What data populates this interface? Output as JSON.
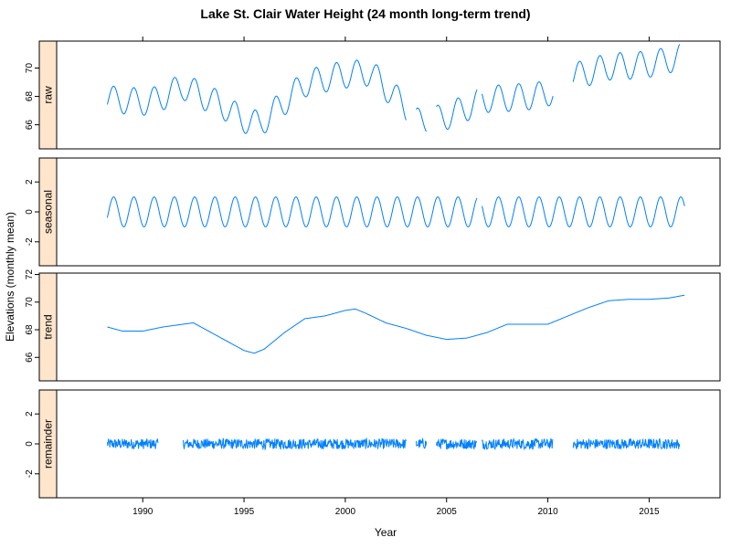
{
  "chart_data": {
    "type": "line",
    "title": "Lake St. Clair Water Height (24 month long-term trend)",
    "xlabel": "Year",
    "ylabel": "Elevations (monthly mean)",
    "xlim": [
      1985.75,
      2018.5
    ],
    "x_ticks": [
      1990,
      1995,
      2000,
      2005,
      2010,
      2015
    ],
    "colors": {
      "main": "#0080ff",
      "highlight": "#ff00ff",
      "strip": "#ffe5cc",
      "axis": "#000000"
    },
    "panels": [
      {
        "strip": "raw",
        "ylim": [
          64.3,
          71.9
        ],
        "y_ticks": [
          66,
          68,
          70
        ],
        "kind": "seasonal_series",
        "amplitude": 0.95,
        "series": [
          {
            "x": [
              1988.25,
              1990.25,
              1990.75,
              1992.0,
              1994.0,
              1994.75,
              1995.75,
              1998.0,
              1999.75,
              2001.25,
              2003.0
            ],
            "y": [
              67.8,
              67.6,
              67.8,
              68.7,
              67.3,
              66.5,
              66.0,
              68.9,
              69.5,
              69.7,
              67.2
            ]
          },
          {
            "x": [
              2003.5,
              2003.75,
              2004.0
            ],
            "y": [
              66.2,
              66.3,
              66.4
            ]
          },
          {
            "x": [
              2004.5,
              2005.0,
              2006.0,
              2006.5
            ],
            "y": [
              66.4,
              66.6,
              67.2,
              67.6
            ]
          },
          {
            "x": [
              2006.75,
              2008.25,
              2009.75,
              2010.25
            ],
            "y": [
              67.8,
              67.9,
              68.1,
              68.4
            ]
          },
          {
            "x": [
              2011.25,
              2013.0,
              2014.5,
              2015.5,
              2016.5
            ],
            "y": [
              69.4,
              70.1,
              70.2,
              70.4,
              70.8
            ]
          }
        ]
      },
      {
        "strip": "seasonal",
        "ylim": [
          -3.6,
          3.6
        ],
        "y_ticks": [
          -2,
          0,
          2
        ],
        "kind": "seasonal_component",
        "amplitude": 1.0,
        "series": [
          {
            "x": [
              1988.25,
              2003.0
            ]
          },
          {
            "x": [
              2003.0,
              2006.5
            ]
          },
          {
            "x": [
              2006.75,
              2016.75
            ]
          }
        ]
      },
      {
        "strip": "trend",
        "ylim": [
          64.3,
          72.1
        ],
        "y_ticks": [
          66,
          68,
          70,
          72
        ],
        "kind": "trend",
        "series": [
          {
            "x": [
              1988.25,
              1989.0,
              1990.0,
              1991.0,
              1992.0,
              1992.5,
              1993.0,
              1994.0,
              1995.0,
              1995.5,
              1996.0,
              1997.0,
              1998.0,
              1999.0,
              2000.0,
              2000.5,
              2001.0,
              2002.0,
              2003.0,
              2004.0,
              2005.0,
              2006.0,
              2007.0,
              2008.0,
              2009.0,
              2010.0,
              2011.0,
              2012.0,
              2013.0,
              2014.0,
              2015.0,
              2016.0,
              2016.75
            ],
            "y": [
              68.2,
              67.9,
              67.9,
              68.2,
              68.4,
              68.5,
              68.1,
              67.3,
              66.5,
              66.3,
              66.6,
              67.8,
              68.8,
              69.0,
              69.4,
              69.5,
              69.2,
              68.5,
              68.1,
              67.6,
              67.3,
              67.4,
              67.8,
              68.4,
              68.4,
              68.4,
              69.0,
              69.6,
              70.1,
              70.2,
              70.2,
              70.3,
              70.5
            ]
          }
        ]
      },
      {
        "strip": "remainder",
        "ylim": [
          -3.6,
          3.6
        ],
        "y_ticks": [
          -2,
          0,
          2
        ],
        "kind": "residual",
        "amplitude": 0.35,
        "series": [
          {
            "x": [
              1988.25,
              1990.75
            ]
          },
          {
            "x": [
              1992.0,
              2003.0
            ]
          },
          {
            "x": [
              2003.5,
              2004.0
            ]
          },
          {
            "x": [
              2004.5,
              2006.5
            ]
          },
          {
            "x": [
              2006.75,
              2010.25
            ]
          },
          {
            "x": [
              2011.25,
              2016.5
            ]
          }
        ]
      }
    ]
  }
}
